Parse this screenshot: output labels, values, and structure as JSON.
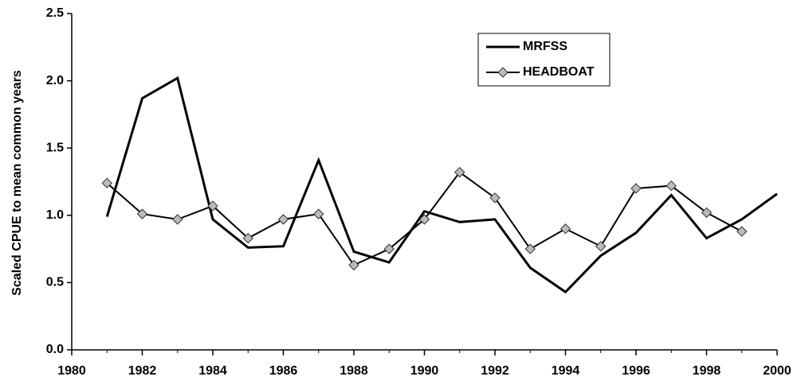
{
  "chart_data": {
    "type": "line",
    "y_label": "Scaled CPUE to mean common years",
    "x": [
      1981,
      1982,
      1983,
      1984,
      1985,
      1986,
      1987,
      1988,
      1989,
      1990,
      1991,
      1992,
      1993,
      1994,
      1995,
      1996,
      1997,
      1998,
      1999,
      2000
    ],
    "series": [
      {
        "name": "MRFSS",
        "color": "#000000",
        "marker": "none",
        "values": [
          0.99,
          1.87,
          2.02,
          0.97,
          0.76,
          0.77,
          1.41,
          0.73,
          0.65,
          1.03,
          0.95,
          0.97,
          0.61,
          0.43,
          0.7,
          0.87,
          1.15,
          0.83,
          0.97,
          1.16
        ]
      },
      {
        "name": "HEADBOAT",
        "color": "#000000",
        "marker": "diamond",
        "values": [
          1.24,
          1.01,
          0.97,
          1.07,
          0.83,
          0.97,
          1.01,
          0.63,
          0.75,
          0.97,
          1.32,
          1.13,
          0.75,
          0.9,
          0.77,
          1.2,
          1.22,
          1.02,
          0.88,
          null
        ]
      }
    ],
    "xlim": [
      1980,
      2000
    ],
    "xticks": [
      1980,
      1982,
      1984,
      1986,
      1988,
      1990,
      1992,
      1994,
      1996,
      1998,
      2000
    ],
    "ylim": [
      0,
      2.5
    ],
    "yticks": [
      {
        "value": 0,
        "label": "0.0"
      },
      {
        "value": 0.5,
        "label": "0.5"
      },
      {
        "value": 1,
        "label": "1.0"
      },
      {
        "value": 1.5,
        "label": "1.5"
      },
      {
        "value": 2,
        "label": "2.0"
      },
      {
        "value": 2.5,
        "label": "2.5"
      }
    ],
    "legend": "top-right",
    "grid": false
  }
}
